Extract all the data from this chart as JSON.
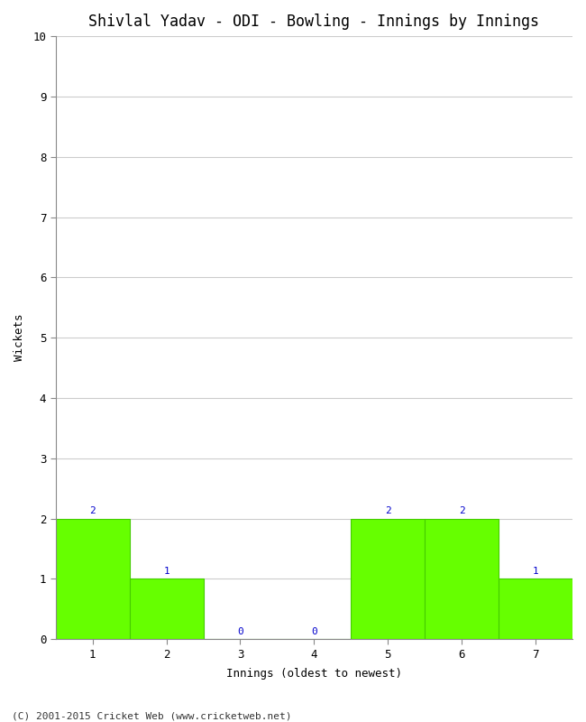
{
  "title": "Shivlal Yadav - ODI - Bowling - Innings by Innings",
  "xlabel": "Innings (oldest to newest)",
  "ylabel": "Wickets",
  "categories": [
    "1",
    "2",
    "3",
    "4",
    "5",
    "6",
    "7"
  ],
  "values": [
    2,
    1,
    0,
    0,
    2,
    2,
    1
  ],
  "bar_color": "#66ff00",
  "bar_edge_color": "#44cc00",
  "label_color": "#0000cc",
  "ylim": [
    0,
    10
  ],
  "yticks": [
    0,
    1,
    2,
    3,
    4,
    5,
    6,
    7,
    8,
    9,
    10
  ],
  "background_color": "#ffffff",
  "plot_bg_color": "#ffffff",
  "grid_color": "#cccccc",
  "title_fontsize": 12,
  "axis_label_fontsize": 9,
  "tick_fontsize": 9,
  "label_fontsize": 8,
  "footer": "(C) 2001-2015 Cricket Web (www.cricketweb.net)",
  "footer_fontsize": 8
}
